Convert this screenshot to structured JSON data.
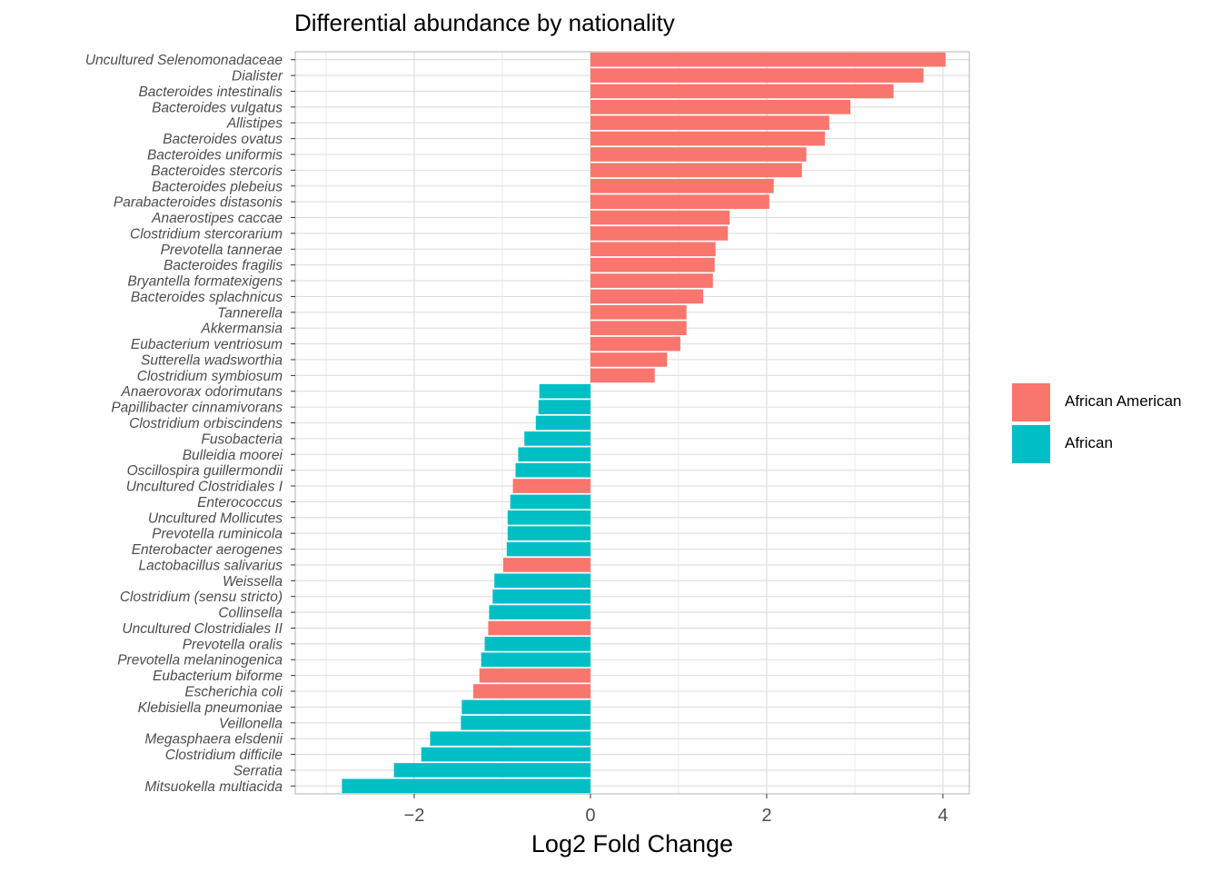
{
  "chart_data": {
    "type": "bar",
    "orientation": "horizontal",
    "title": "Differential abundance by nationality",
    "xlabel": "Log2 Fold Change",
    "ylabel": "",
    "xlim": [
      -3.35,
      4.3
    ],
    "xticks": [
      -2,
      0,
      2,
      4
    ],
    "grid": true,
    "legend_position": "right",
    "colors": {
      "African American": "#F8766D",
      "African": "#00BFC4"
    },
    "series": [
      {
        "name": "African American",
        "color": "#F8766D"
      },
      {
        "name": "African",
        "color": "#00BFC4"
      }
    ],
    "bars": [
      {
        "label": "Uncultured Selenomonadaceae",
        "value": 4.03,
        "group": "African American"
      },
      {
        "label": "Dialister",
        "value": 3.78,
        "group": "African American"
      },
      {
        "label": "Bacteroides intestinalis",
        "value": 3.44,
        "group": "African American"
      },
      {
        "label": "Bacteroides vulgatus",
        "value": 2.95,
        "group": "African American"
      },
      {
        "label": "Allistipes",
        "value": 2.71,
        "group": "African American"
      },
      {
        "label": "Bacteroides ovatus",
        "value": 2.66,
        "group": "African American"
      },
      {
        "label": "Bacteroides uniformis",
        "value": 2.45,
        "group": "African American"
      },
      {
        "label": "Bacteroides stercoris",
        "value": 2.4,
        "group": "African American"
      },
      {
        "label": "Bacteroides plebeius",
        "value": 2.08,
        "group": "African American"
      },
      {
        "label": "Parabacteroides distasonis",
        "value": 2.03,
        "group": "African American"
      },
      {
        "label": "Anaerostipes caccae",
        "value": 1.58,
        "group": "African American"
      },
      {
        "label": "Clostridium stercorarium",
        "value": 1.56,
        "group": "African American"
      },
      {
        "label": "Prevotella tannerae",
        "value": 1.42,
        "group": "African American"
      },
      {
        "label": "Bacteroides fragilis",
        "value": 1.41,
        "group": "African American"
      },
      {
        "label": "Bryantella formatexigens",
        "value": 1.39,
        "group": "African American"
      },
      {
        "label": "Bacteroides splachnicus",
        "value": 1.28,
        "group": "African American"
      },
      {
        "label": "Tannerella",
        "value": 1.09,
        "group": "African American"
      },
      {
        "label": "Akkermansia",
        "value": 1.09,
        "group": "African American"
      },
      {
        "label": "Eubacterium ventriosum",
        "value": 1.02,
        "group": "African American"
      },
      {
        "label": "Sutterella wadsworthia",
        "value": 0.87,
        "group": "African American"
      },
      {
        "label": "Clostridium symbiosum",
        "value": 0.73,
        "group": "African American"
      },
      {
        "label": "Anaerovorax odorimutans",
        "value": -0.58,
        "group": "African"
      },
      {
        "label": "Papillibacter cinnamivorans",
        "value": -0.59,
        "group": "African"
      },
      {
        "label": "Clostridium orbiscindens",
        "value": -0.62,
        "group": "African"
      },
      {
        "label": "Fusobacteria",
        "value": -0.75,
        "group": "African"
      },
      {
        "label": "Bulleidia moorei",
        "value": -0.82,
        "group": "African"
      },
      {
        "label": "Oscillospira guillermondii",
        "value": -0.85,
        "group": "African"
      },
      {
        "label": "Uncultured Clostridiales I",
        "value": -0.88,
        "group": "African American"
      },
      {
        "label": "Enterococcus",
        "value": -0.91,
        "group": "African"
      },
      {
        "label": "Uncultured Mollicutes",
        "value": -0.94,
        "group": "African"
      },
      {
        "label": "Prevotella ruminicola",
        "value": -0.94,
        "group": "African"
      },
      {
        "label": "Enterobacter aerogenes",
        "value": -0.95,
        "group": "African"
      },
      {
        "label": "Lactobacillus salivarius",
        "value": -0.99,
        "group": "African American"
      },
      {
        "label": "Weissella",
        "value": -1.09,
        "group": "African"
      },
      {
        "label": "Clostridium (sensu stricto)",
        "value": -1.11,
        "group": "African"
      },
      {
        "label": "Collinsella",
        "value": -1.15,
        "group": "African"
      },
      {
        "label": "Uncultured Clostridiales II",
        "value": -1.16,
        "group": "African American"
      },
      {
        "label": "Prevotella oralis",
        "value": -1.2,
        "group": "African"
      },
      {
        "label": "Prevotella melaninogenica",
        "value": -1.24,
        "group": "African"
      },
      {
        "label": "Eubacterium biforme",
        "value": -1.26,
        "group": "African American"
      },
      {
        "label": "Escherichia coli",
        "value": -1.33,
        "group": "African American"
      },
      {
        "label": "Klebisiella pneumoniae",
        "value": -1.46,
        "group": "African"
      },
      {
        "label": "Veillonella",
        "value": -1.47,
        "group": "African"
      },
      {
        "label": "Megasphaera elsdenii",
        "value": -1.82,
        "group": "African"
      },
      {
        "label": "Clostridium difficile",
        "value": -1.92,
        "group": "African"
      },
      {
        "label": "Serratia",
        "value": -2.23,
        "group": "African"
      },
      {
        "label": "Mitsuokella multiacida",
        "value": -2.82,
        "group": "African"
      }
    ]
  }
}
